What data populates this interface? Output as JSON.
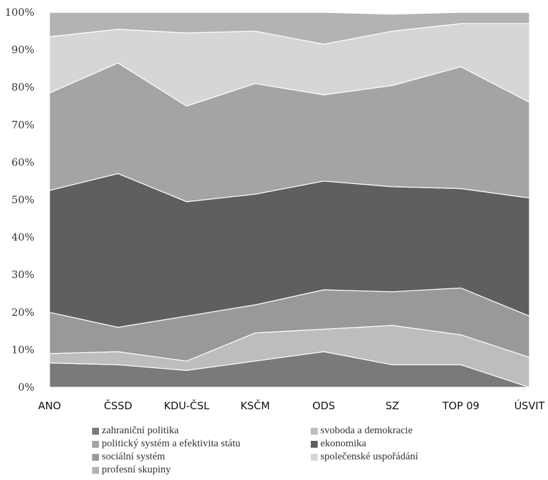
{
  "chart_data": {
    "type": "area",
    "stacked": true,
    "percent": true,
    "categories": [
      "ANO",
      "ČSSD",
      "KDU-ČSL",
      "KSČM",
      "ODS",
      "SZ",
      "TOP 09",
      "ÚSVIT"
    ],
    "yticks": [
      "0%",
      "10%",
      "20%",
      "30%",
      "40%",
      "50%",
      "60%",
      "70%",
      "80%",
      "90%",
      "100%"
    ],
    "ylim": [
      0,
      100
    ],
    "grid": false,
    "legend_position": "bottom",
    "series": [
      {
        "name": "zahraniční politika",
        "color": "#7a7a7a",
        "values": [
          6.5,
          6,
          4.5,
          7,
          9.5,
          6,
          6,
          0
        ]
      },
      {
        "name": "svoboda a demokracie",
        "color": "#bdbdbd",
        "values": [
          2.5,
          3.5,
          2.5,
          7.5,
          6,
          10.5,
          8,
          8
        ]
      },
      {
        "name": "sociální systém",
        "color": "#999999",
        "values": [
          11,
          6.5,
          12,
          7.5,
          10.5,
          9,
          12.5,
          11
        ]
      },
      {
        "name": "ekonomika",
        "color": "#5f5f5f",
        "values": [
          32.5,
          41,
          30.5,
          29.5,
          29,
          28,
          26.5,
          31.5
        ]
      },
      {
        "name": "politický systém a efektivita státu",
        "color": "#a4a4a4",
        "values": [
          26,
          29.5,
          25.5,
          29.5,
          23,
          27,
          32.5,
          25.5
        ]
      },
      {
        "name": "společenské uspořádání",
        "color": "#d6d6d6",
        "values": [
          15,
          9,
          19.5,
          14,
          13.5,
          14.5,
          11.5,
          21
        ]
      },
      {
        "name": "profesní skupiny",
        "color": "#b3b3b3",
        "values": [
          6.5,
          4.5,
          5.5,
          5,
          8.5,
          4.5,
          3,
          3
        ]
      }
    ]
  },
  "legend": {
    "items": [
      {
        "label": "zahraniční politika",
        "color": "#7a7a7a"
      },
      {
        "label": "svoboda a demokracie",
        "color": "#bdbdbd"
      },
      {
        "label": "politický systém a efektivita státu",
        "color": "#a4a4a4"
      },
      {
        "label": "ekonomika",
        "color": "#5f5f5f"
      },
      {
        "label": "sociální systém",
        "color": "#999999"
      },
      {
        "label": "společenské uspořádání",
        "color": "#d6d6d6"
      },
      {
        "label": "profesní skupiny",
        "color": "#b3b3b3"
      }
    ]
  }
}
